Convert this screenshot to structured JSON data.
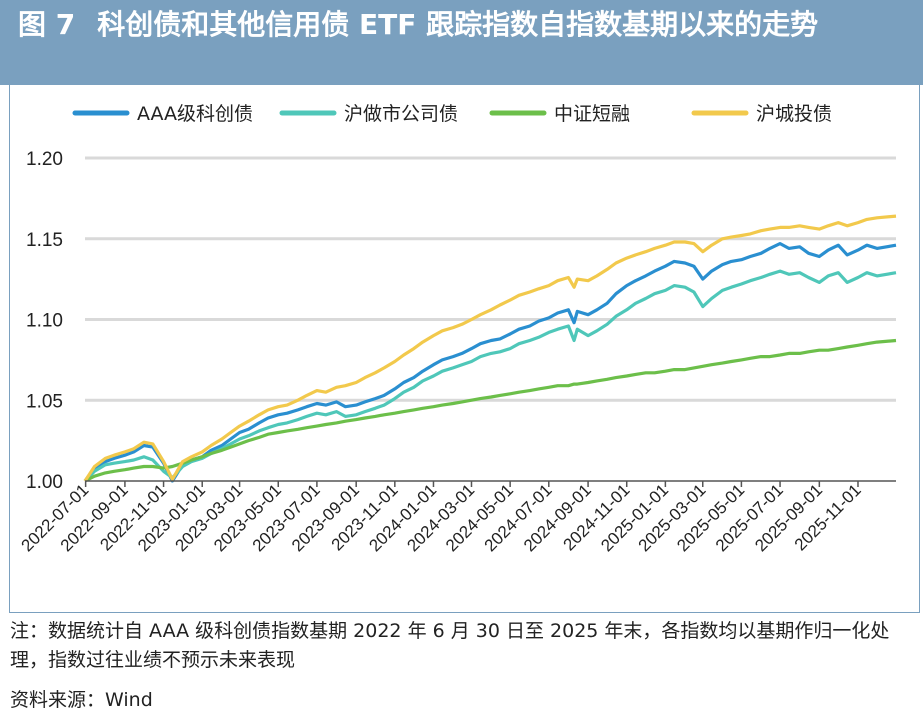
{
  "header": {
    "figure_label": "图 7",
    "title": "科创债和其他信用债 ETF 跟踪指数自指数基期以来的走势"
  },
  "footer": {
    "note": "注：数据统计自 AAA 级科创债指数基期 2022 年 6 月 30 日至 2025 年末，各指数均以基期作归一化处理，指数过往业绩不预示未来表现",
    "source": "资料来源：Wind"
  },
  "colors": {
    "title_bg": "#7aa0bf",
    "grid": "#d9d9d9",
    "axis": "#555555"
  },
  "chart_data": {
    "type": "line",
    "title": "",
    "xlabel": "",
    "ylabel": "",
    "ylim": [
      1.0,
      1.2
    ],
    "y_ticks": [
      "1.00",
      "1.05",
      "1.10",
      "1.15",
      "1.20"
    ],
    "x_ticks": [
      "2022-07-01",
      "2022-09-01",
      "2022-11-01",
      "2023-01-01",
      "2023-03-01",
      "2023-05-01",
      "2023-07-01",
      "2023-09-01",
      "2023-11-01",
      "2024-01-01",
      "2024-03-01",
      "2024-05-01",
      "2024-07-01",
      "2024-09-01",
      "2024-11-01",
      "2025-01-01",
      "2025-03-01",
      "2025-05-01",
      "2025-07-01",
      "2025-09-01",
      "2025-11-01"
    ],
    "legend_position": "top",
    "grid": "horizontal",
    "x": [
      "2022-06-30",
      "2022-07-15",
      "2022-08-01",
      "2022-08-15",
      "2022-09-01",
      "2022-09-15",
      "2022-10-01",
      "2022-10-15",
      "2022-11-01",
      "2022-11-15",
      "2022-12-01",
      "2022-12-15",
      "2023-01-01",
      "2023-01-15",
      "2023-02-01",
      "2023-02-15",
      "2023-03-01",
      "2023-03-15",
      "2023-04-01",
      "2023-04-15",
      "2023-05-01",
      "2023-05-15",
      "2023-06-01",
      "2023-06-15",
      "2023-07-01",
      "2023-07-15",
      "2023-08-01",
      "2023-08-15",
      "2023-09-01",
      "2023-09-15",
      "2023-10-01",
      "2023-10-15",
      "2023-11-01",
      "2023-11-15",
      "2023-12-01",
      "2023-12-15",
      "2024-01-01",
      "2024-01-15",
      "2024-02-01",
      "2024-02-15",
      "2024-03-01",
      "2024-03-15",
      "2024-04-01",
      "2024-04-15",
      "2024-05-01",
      "2024-05-15",
      "2024-06-01",
      "2024-06-15",
      "2024-07-01",
      "2024-07-15",
      "2024-08-01",
      "2024-08-10",
      "2024-08-15",
      "2024-09-01",
      "2024-09-15",
      "2024-10-01",
      "2024-10-15",
      "2024-11-01",
      "2024-11-15",
      "2024-12-01",
      "2024-12-15",
      "2025-01-01",
      "2025-01-15",
      "2025-02-01",
      "2025-02-15",
      "2025-03-01",
      "2025-03-15",
      "2025-04-01",
      "2025-04-15",
      "2025-05-01",
      "2025-05-15",
      "2025-06-01",
      "2025-06-15",
      "2025-07-01",
      "2025-07-15",
      "2025-08-01",
      "2025-08-15",
      "2025-09-01",
      "2025-09-15",
      "2025-10-01",
      "2025-10-15",
      "2025-11-01",
      "2025-11-15",
      "2025-12-01",
      "2025-12-31"
    ],
    "series": [
      {
        "name": "AAA级科创债",
        "color": "#2a8fd0",
        "values": [
          1.0,
          1.008,
          1.012,
          1.014,
          1.016,
          1.018,
          1.022,
          1.021,
          1.011,
          1.0,
          1.01,
          1.013,
          1.015,
          1.019,
          1.022,
          1.026,
          1.03,
          1.032,
          1.036,
          1.039,
          1.041,
          1.042,
          1.044,
          1.046,
          1.048,
          1.047,
          1.049,
          1.046,
          1.047,
          1.049,
          1.051,
          1.053,
          1.057,
          1.061,
          1.064,
          1.068,
          1.072,
          1.075,
          1.077,
          1.079,
          1.082,
          1.085,
          1.087,
          1.088,
          1.091,
          1.094,
          1.096,
          1.099,
          1.101,
          1.104,
          1.106,
          1.098,
          1.105,
          1.103,
          1.106,
          1.11,
          1.116,
          1.121,
          1.124,
          1.127,
          1.13,
          1.133,
          1.136,
          1.135,
          1.133,
          1.125,
          1.13,
          1.134,
          1.136,
          1.137,
          1.139,
          1.141,
          1.144,
          1.147,
          1.144,
          1.145,
          1.141,
          1.139,
          1.143,
          1.146,
          1.14,
          1.143,
          1.146,
          1.144,
          1.146
        ]
      },
      {
        "name": "沪做市公司债",
        "color": "#4fc7b9",
        "values": [
          1.0,
          1.006,
          1.01,
          1.011,
          1.012,
          1.013,
          1.015,
          1.013,
          1.006,
          1.002,
          1.009,
          1.012,
          1.014,
          1.017,
          1.02,
          1.023,
          1.026,
          1.028,
          1.031,
          1.033,
          1.035,
          1.036,
          1.038,
          1.04,
          1.042,
          1.041,
          1.043,
          1.04,
          1.041,
          1.043,
          1.045,
          1.047,
          1.051,
          1.055,
          1.058,
          1.062,
          1.065,
          1.068,
          1.07,
          1.072,
          1.074,
          1.077,
          1.079,
          1.08,
          1.082,
          1.085,
          1.087,
          1.089,
          1.092,
          1.094,
          1.096,
          1.087,
          1.094,
          1.09,
          1.093,
          1.097,
          1.102,
          1.106,
          1.11,
          1.113,
          1.116,
          1.118,
          1.121,
          1.12,
          1.117,
          1.108,
          1.113,
          1.118,
          1.12,
          1.122,
          1.124,
          1.126,
          1.128,
          1.13,
          1.128,
          1.129,
          1.126,
          1.123,
          1.127,
          1.129,
          1.123,
          1.126,
          1.129,
          1.127,
          1.129
        ]
      },
      {
        "name": "中证短融",
        "color": "#6cbf4a",
        "values": [
          1.0,
          1.003,
          1.005,
          1.006,
          1.007,
          1.008,
          1.009,
          1.009,
          1.008,
          1.009,
          1.011,
          1.013,
          1.015,
          1.017,
          1.019,
          1.021,
          1.023,
          1.025,
          1.027,
          1.029,
          1.03,
          1.031,
          1.032,
          1.033,
          1.034,
          1.035,
          1.036,
          1.037,
          1.038,
          1.039,
          1.04,
          1.041,
          1.042,
          1.043,
          1.044,
          1.045,
          1.046,
          1.047,
          1.048,
          1.049,
          1.05,
          1.051,
          1.052,
          1.053,
          1.054,
          1.055,
          1.056,
          1.057,
          1.058,
          1.059,
          1.059,
          1.06,
          1.06,
          1.061,
          1.062,
          1.063,
          1.064,
          1.065,
          1.066,
          1.067,
          1.067,
          1.068,
          1.069,
          1.069,
          1.07,
          1.071,
          1.072,
          1.073,
          1.074,
          1.075,
          1.076,
          1.077,
          1.077,
          1.078,
          1.079,
          1.079,
          1.08,
          1.081,
          1.081,
          1.082,
          1.083,
          1.084,
          1.085,
          1.086,
          1.087
        ]
      },
      {
        "name": "沪城投债",
        "color": "#f2c94c",
        "values": [
          1.0,
          1.009,
          1.014,
          1.016,
          1.018,
          1.02,
          1.024,
          1.023,
          1.012,
          1.001,
          1.012,
          1.015,
          1.018,
          1.022,
          1.026,
          1.03,
          1.034,
          1.037,
          1.041,
          1.044,
          1.046,
          1.047,
          1.05,
          1.053,
          1.056,
          1.055,
          1.058,
          1.059,
          1.061,
          1.064,
          1.067,
          1.07,
          1.074,
          1.078,
          1.082,
          1.086,
          1.09,
          1.093,
          1.095,
          1.097,
          1.1,
          1.103,
          1.106,
          1.109,
          1.112,
          1.115,
          1.117,
          1.119,
          1.121,
          1.124,
          1.126,
          1.12,
          1.125,
          1.124,
          1.127,
          1.131,
          1.135,
          1.138,
          1.14,
          1.142,
          1.144,
          1.146,
          1.148,
          1.148,
          1.147,
          1.142,
          1.146,
          1.15,
          1.151,
          1.152,
          1.153,
          1.155,
          1.156,
          1.157,
          1.157,
          1.158,
          1.157,
          1.156,
          1.158,
          1.16,
          1.158,
          1.16,
          1.162,
          1.163,
          1.164
        ]
      }
    ]
  }
}
